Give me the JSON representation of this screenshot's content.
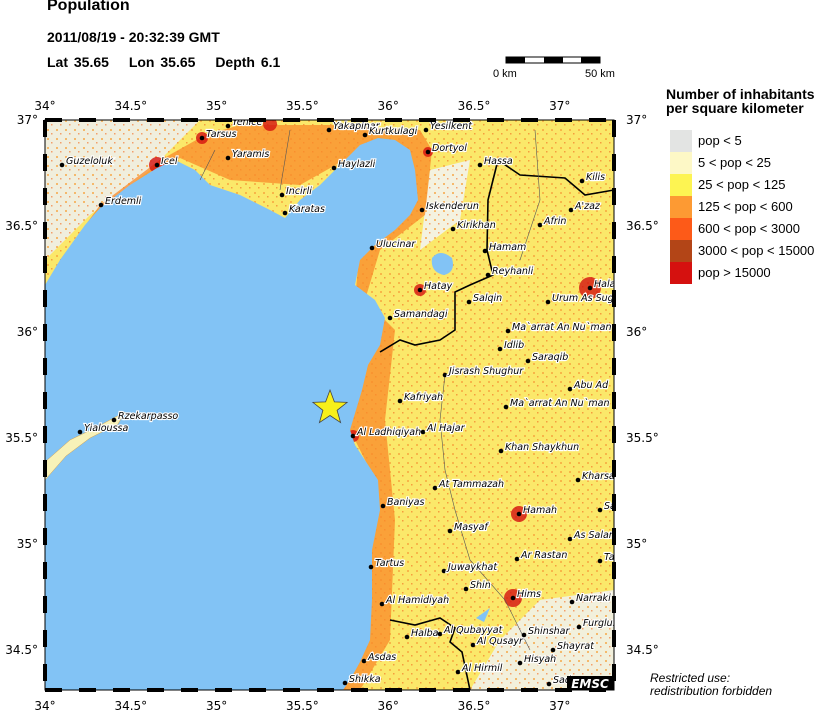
{
  "header": {
    "title": "Population",
    "datetime": "2011/08/19 - 20:32:39 GMT",
    "lat_label": "Lat 35.65",
    "lon_label": "Lon 35.65",
    "depth_label": "Depth 6.1"
  },
  "scale_bar": {
    "start_label": "0 km",
    "end_label": "50 km"
  },
  "map": {
    "lon_ticks": [
      "34°",
      "34.5°",
      "35°",
      "35.5°",
      "36°",
      "36.5°",
      "37°"
    ],
    "lat_ticks": [
      "37°",
      "36.5°",
      "36°",
      "35.5°",
      "35°",
      "34.5°"
    ],
    "epicenter_icon": "star-icon",
    "sea_color": "#82c3f5",
    "logo": "EMSC",
    "cities": [
      "Yenice",
      "Tarsus",
      "Yaramis",
      "Icel",
      "Guzeloluk",
      "Erdemli",
      "Incirli",
      "Karatas",
      "Haylazli",
      "Yakapinar",
      "Kurtkulagi",
      "Yesilkent",
      "Dortyol",
      "Hassa",
      "Kilis",
      "Iskenderun",
      "Kirikhan",
      "A'zaz",
      "Afrin",
      "Ulucinar",
      "Hamam",
      "Reyhanli",
      "Hatay",
      "Hala",
      "Salqin",
      "Urum As Sugr",
      "Samandagi",
      "Ma`arrat An Nu`man",
      "Idlib",
      "Saraqib",
      "Jisrash Shughur",
      "Abu Ad",
      "Kafriyah",
      "Ma`arrat An Nu`man",
      "Al Ladhiqiyah",
      "Al Hajar",
      "Khan Shaykhun",
      "Kharsa",
      "At Tammazah",
      "Baniyas",
      "Hamah",
      "Sa",
      "Masyaf",
      "As Salam",
      "Ar Rastan",
      "Ta",
      "Tartus",
      "Juwaykhat",
      "Shin",
      "Hims",
      "Narraki",
      "Al Hamidiyah",
      "Furglus",
      "Halba",
      "Al Qubayyat",
      "Shinshar",
      "Al Qusayr",
      "Shayrat",
      "Asdas",
      "Al Hirmil",
      "Hisyah",
      "Shikka",
      "Sad",
      "Yialoussa",
      "Rzekarpasso"
    ]
  },
  "legend": {
    "title_line1": "Number of inhabitants",
    "title_line2": "per square kilometer",
    "items": [
      {
        "label": "pop < 5",
        "color": "#e3e4e3"
      },
      {
        "label": "5 < pop < 25",
        "color": "#fdf8c6"
      },
      {
        "label": "25 < pop < 125",
        "color": "#fdf452"
      },
      {
        "label": "125 < pop < 600",
        "color": "#fd9a33"
      },
      {
        "label": "600 < pop < 3000",
        "color": "#fd5a18"
      },
      {
        "label": "3000 < pop < 15000",
        "color": "#b34517"
      },
      {
        "label": "pop > 15000",
        "color": "#d5110f"
      }
    ]
  },
  "footer": {
    "line1": "Restricted use:",
    "line2": "redistribution forbidden"
  }
}
